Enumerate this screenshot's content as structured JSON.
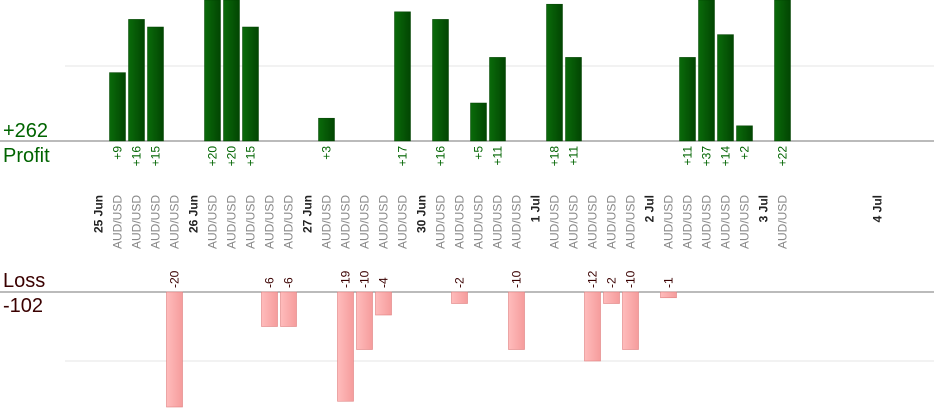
{
  "summary": {
    "profit_label": "Profit",
    "profit_total": "+262",
    "loss_label": "Loss",
    "loss_total": "-102"
  },
  "colors": {
    "profit_bar": "#0a6b0a",
    "loss_bar": "#ffb0b0",
    "profit_text": "#006400",
    "loss_text": "#3a0000",
    "category_text": "#888888",
    "date_text": "#222222"
  },
  "chart_data": {
    "type": "bar",
    "title": "",
    "xlabel": "",
    "ylabel": "",
    "grid": true,
    "series": [
      {
        "name": "Profit",
        "ylim": [
          0,
          18
        ]
      },
      {
        "name": "Loss",
        "ylim": [
          -20,
          0
        ]
      }
    ],
    "dates": [
      {
        "label": "25 Jun",
        "index": 0
      },
      {
        "label": "26 Jun",
        "index": 5
      },
      {
        "label": "27 Jun",
        "index": 11
      },
      {
        "label": "30 Jun",
        "index": 17
      },
      {
        "label": "1 Jul",
        "index": 23
      },
      {
        "label": "2 Jul",
        "index": 29
      },
      {
        "label": "3 Jul",
        "index": 35
      },
      {
        "label": "4 Jul",
        "index": 41
      }
    ],
    "trades": [
      {
        "category": "AUD/USD",
        "value": 9,
        "label": "+9"
      },
      {
        "category": "AUD/USD",
        "value": 16,
        "label": "+16"
      },
      {
        "category": "AUD/USD",
        "value": 15,
        "label": "+15"
      },
      {
        "category": "AUD/USD",
        "value": -20,
        "label": "-20"
      },
      {
        "category": "AUD/USD",
        "value": 20,
        "label": "+20"
      },
      {
        "category": "AUD/USD",
        "value": 20,
        "label": "+20"
      },
      {
        "category": "AUD/USD",
        "value": 15,
        "label": "+15"
      },
      {
        "category": "AUD/USD",
        "value": -6,
        "label": "-6"
      },
      {
        "category": "AUD/USD",
        "value": -6,
        "label": "-6"
      },
      {
        "category": "AUD/USD",
        "value": 3,
        "label": "+3"
      },
      {
        "category": "AUD/USD",
        "value": -19,
        "label": "-19"
      },
      {
        "category": "AUD/USD",
        "value": -10,
        "label": "-10"
      },
      {
        "category": "AUD/USD",
        "value": -4,
        "label": "-4"
      },
      {
        "category": "AUD/USD",
        "value": 17,
        "label": "+17"
      },
      {
        "category": "AUD/USD",
        "value": 16,
        "label": "+16"
      },
      {
        "category": "AUD/USD",
        "value": -2,
        "label": "-2"
      },
      {
        "category": "AUD/USD",
        "value": 5,
        "label": "+5"
      },
      {
        "category": "AUD/USD",
        "value": 11,
        "label": "+11"
      },
      {
        "category": "AUD/USD",
        "value": -10,
        "label": "-10"
      },
      {
        "category": "AUD/USD",
        "value": 18,
        "label": "+18"
      },
      {
        "category": "AUD/USD",
        "value": 11,
        "label": "+11"
      },
      {
        "category": "AUD/USD",
        "value": -12,
        "label": "-12"
      },
      {
        "category": "AUD/USD",
        "value": -2,
        "label": "-2"
      },
      {
        "category": "AUD/USD",
        "value": -10,
        "label": "-10"
      },
      {
        "category": "AUD/USD",
        "value": -1,
        "label": "-1"
      },
      {
        "category": "AUD/USD",
        "value": 11,
        "label": "+11"
      },
      {
        "category": "AUD/USD",
        "value": 37,
        "label": "+37"
      },
      {
        "category": "AUD/USD",
        "value": 14,
        "label": "+14"
      },
      {
        "category": "AUD/USD",
        "value": 2,
        "label": "+2"
      },
      {
        "category": "AUD/USD",
        "value": 22,
        "label": "+22"
      }
    ]
  }
}
